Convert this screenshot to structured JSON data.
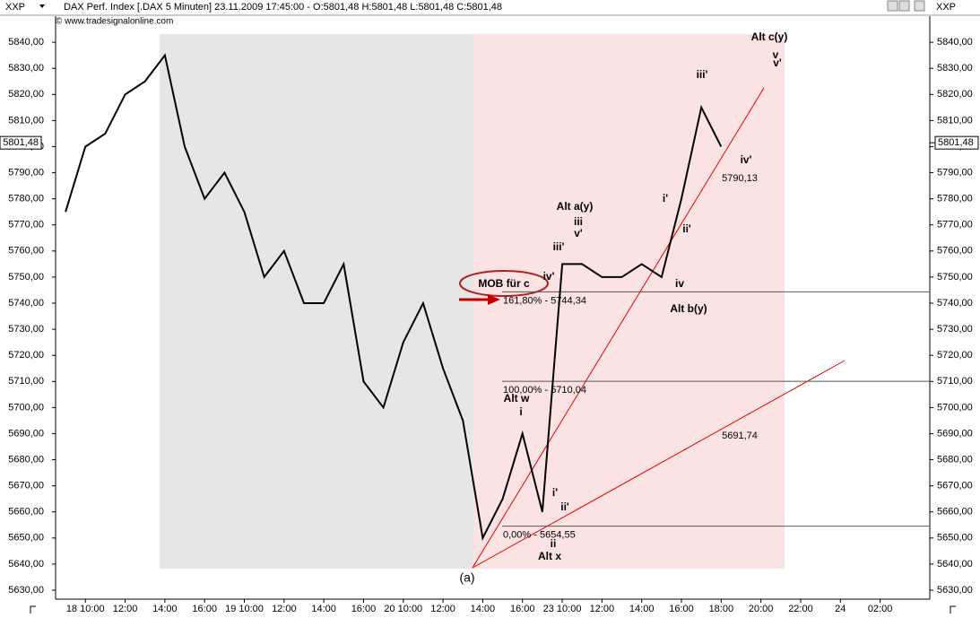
{
  "chart_data": {
    "type": "line",
    "symbol": "XXP",
    "title": "DAX Perf. Index [.DAX 5 Minuten] 23.11.2009 17:45:00 - O:5801,48 H:5801,48 L:5801,48 C:5801,48",
    "source": "© www.tradesignalonline.com",
    "categories": [
      null,
      "18 10:00",
      null,
      "12:00",
      null,
      "14:00",
      null,
      "16:00",
      null,
      "19 10:00",
      null,
      "12:00",
      null,
      "14:00",
      null,
      "16:00",
      null,
      "20 10:00",
      null,
      "12:00",
      null,
      "14:00",
      null,
      "16:00",
      null,
      "23 10:00",
      null,
      "12:00",
      null,
      "14:00",
      null,
      "16:00",
      null,
      "18:00",
      null,
      "20:00",
      null,
      "22:00",
      null,
      "24",
      null,
      "02:00",
      null,
      null
    ],
    "series": [
      {
        "color": "#000000",
        "values": [
          5775,
          5800,
          5805,
          5820,
          5825,
          5835,
          5800,
          5780,
          5790,
          5775,
          5750,
          5760,
          5740,
          5740,
          5755,
          5710,
          5700,
          5725,
          5740,
          5715,
          5695,
          5650,
          5665,
          5690,
          5660,
          5755,
          5755,
          5750,
          5750,
          5755,
          5750,
          5780,
          5815,
          5800,
          null,
          null,
          null,
          null,
          null,
          null,
          null,
          null,
          null,
          null
        ]
      }
    ],
    "last_price": {
      "value": 5801.48,
      "label": "5801,48"
    },
    "ylim": [
      5626.56,
      5850
    ],
    "yticks": [
      {
        "value": 5630,
        "label": "5630,00"
      },
      {
        "value": 5640,
        "label": "5640,00"
      },
      {
        "value": 5650,
        "label": "5650,00"
      },
      {
        "value": 5660,
        "label": "5660,00"
      },
      {
        "value": 5670,
        "label": "5670,00"
      },
      {
        "value": 5680,
        "label": "5680,00"
      },
      {
        "value": 5690,
        "label": "5690,00"
      },
      {
        "value": 5700,
        "label": "5700,00"
      },
      {
        "value": 5710,
        "label": "5710,00"
      },
      {
        "value": 5720,
        "label": "5720,00"
      },
      {
        "value": 5730,
        "label": "5730,00"
      },
      {
        "value": 5740,
        "label": "5740,00"
      },
      {
        "value": 5750,
        "label": "5750,00"
      },
      {
        "value": 5760,
        "label": "5760,00"
      },
      {
        "value": 5770,
        "label": "5770,00"
      },
      {
        "value": 5780,
        "label": "5780,00"
      },
      {
        "value": 5790,
        "label": "5790,00"
      },
      {
        "value": 5800,
        "label": "5800,00"
      },
      {
        "value": 5810,
        "label": "5810,00"
      },
      {
        "value": 5820,
        "label": "5820,00"
      },
      {
        "value": 5830,
        "label": "5830,00"
      },
      {
        "value": 5840,
        "label": "5840,00"
      }
    ],
    "levels": [
      {
        "value": 5744.34,
        "label": "161,80% - 5744,34"
      },
      {
        "value": 5710.04,
        "label": "100,00% - 5710,04"
      },
      {
        "value": 5654.55,
        "label": "0,00% - 5654,55"
      }
    ],
    "annotations": [
      {
        "text": "Alt c(y)",
        "color": "#e000e0"
      },
      {
        "text": "v",
        "color": "#555555"
      },
      {
        "text": "v'",
        "color": "#d00000"
      },
      {
        "text": "iii'",
        "color": "#d00000"
      },
      {
        "text": "iv'",
        "color": "#d00000"
      },
      {
        "text": "5790,13",
        "color": "#d00000"
      },
      {
        "text": "i'",
        "color": "#d00000"
      },
      {
        "text": "ii'",
        "color": "#d00000"
      },
      {
        "text": "Alt a(y)",
        "color": "#e000e0"
      },
      {
        "text": "iii",
        "color": "#555555"
      },
      {
        "text": "v'",
        "color": "#d00000"
      },
      {
        "text": "iii'",
        "color": "#d00000"
      },
      {
        "text": "iv'",
        "color": "#d00000"
      },
      {
        "text": "iv",
        "color": "#555555"
      },
      {
        "text": "Alt b(y)",
        "color": "#e000e0"
      },
      {
        "text": "MOB für c",
        "color": "#d00000"
      },
      {
        "text": "Alt w",
        "color": "#e000e0"
      },
      {
        "text": "i",
        "color": "#555555"
      },
      {
        "text": "5691,74",
        "color": "#d00000"
      },
      {
        "text": "i'",
        "color": "#d00000"
      },
      {
        "text": "ii'",
        "color": "#d00000"
      },
      {
        "text": "ii",
        "color": "#555555"
      },
      {
        "text": "Alt x",
        "color": "#e000e0"
      },
      {
        "text": "(a)",
        "color": "#d00000"
      }
    ]
  }
}
